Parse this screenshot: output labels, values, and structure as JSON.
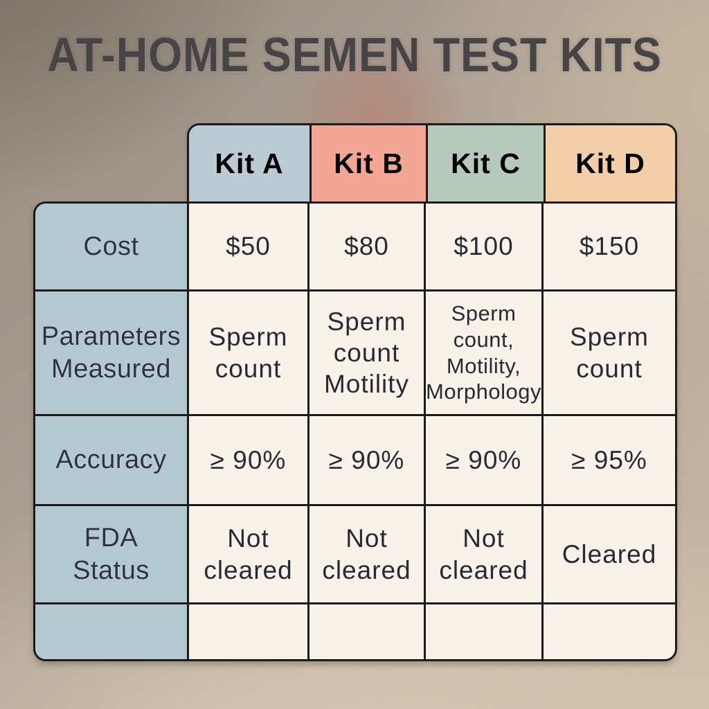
{
  "title": "AT-HOME SEMEN TEST KITS",
  "colors": {
    "title_text": "#474445",
    "border": "#1b1b1b",
    "row_header_bg": "#b3c8d1",
    "data_cell_bg": "#f8f2e8",
    "cell_text": "#262b33"
  },
  "table": {
    "columns": [
      {
        "label": "Kit A",
        "color": "#bacbd4"
      },
      {
        "label": "Kit B",
        "color": "#f4a694"
      },
      {
        "label": "Kit C",
        "color": "#b5c9bd"
      },
      {
        "label": "Kit D",
        "color": "#f2cfa8"
      }
    ],
    "rows": [
      {
        "label": "Cost",
        "values": [
          "$50",
          "$80",
          "$100",
          "$150"
        ]
      },
      {
        "label": "Parameters\nMeasured",
        "values": [
          "Sperm\ncount",
          "Sperm\ncount\nMotility",
          "Sperm\ncount,\nMotility,\nMorphology",
          "Sperm\ncount"
        ]
      },
      {
        "label": "Accuracy",
        "values": [
          "≥ 90%",
          "≥ 90%",
          "≥ 90%",
          "≥ 95%"
        ]
      },
      {
        "label": "FDA\nStatus",
        "values": [
          "Not\ncleared",
          "Not\ncleared",
          "Not\ncleared",
          "Cleared"
        ]
      },
      {
        "label": "",
        "values": [
          "",
          "",
          "",
          ""
        ]
      }
    ]
  },
  "chart_data": {
    "type": "table",
    "title": "AT-HOME SEMEN TEST KITS",
    "column_headers": [
      "",
      "Kit A",
      "Kit B",
      "Kit C",
      "Kit D"
    ],
    "rows": [
      [
        "Cost",
        "$50",
        "$80",
        "$100",
        "$150"
      ],
      [
        "Parameters Measured",
        "Sperm count",
        "Sperm count Motility",
        "Sperm count, Motility, Morphology",
        "Sperm count"
      ],
      [
        "Accuracy",
        "≥ 90%",
        "≥ 90%",
        "≥ 90%",
        "≥ 95%"
      ],
      [
        "FDA Status",
        "Not cleared",
        "Not cleared",
        "Not cleared",
        "Cleared"
      ],
      [
        "",
        "",
        "",
        "",
        ""
      ]
    ],
    "layout_hints": {
      "header_colors": [
        "#bacbd4",
        "#f4a694",
        "#b5c9bd",
        "#f2cfa8"
      ],
      "row_header_color": "#b3c8d1",
      "cell_color": "#f8f2e8",
      "grid": "on"
    }
  }
}
